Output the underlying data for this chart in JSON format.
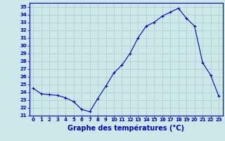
{
  "hours": [
    0,
    1,
    2,
    3,
    4,
    5,
    6,
    7,
    8,
    9,
    10,
    11,
    12,
    13,
    14,
    15,
    16,
    17,
    18,
    19,
    20,
    21,
    22,
    23
  ],
  "temperatures": [
    24.5,
    23.8,
    23.7,
    23.6,
    23.3,
    22.8,
    21.8,
    21.5,
    23.2,
    24.8,
    26.5,
    27.5,
    29.0,
    31.0,
    32.5,
    33.0,
    33.8,
    34.3,
    34.8,
    33.5,
    32.5,
    27.8,
    26.2,
    23.5
  ],
  "xlabel": "Graphe des températures (°C)",
  "ylim": [
    21,
    35.5
  ],
  "xlim": [
    -0.5,
    23.5
  ],
  "yticks": [
    21,
    22,
    23,
    24,
    25,
    26,
    27,
    28,
    29,
    30,
    31,
    32,
    33,
    34,
    35
  ],
  "xticks": [
    0,
    1,
    2,
    3,
    4,
    5,
    6,
    7,
    8,
    9,
    10,
    11,
    12,
    13,
    14,
    15,
    16,
    17,
    18,
    19,
    20,
    21,
    22,
    23
  ],
  "line_color": "#0000cc",
  "marker": "+",
  "bg_color": "#cce8e8",
  "grid_color": "#aacccc",
  "spine_color": "#0000cc",
  "tick_color": "#0000cc",
  "label_color": "#0000cc",
  "xlabel_fontsize": 7,
  "tick_fontsize": 5.0
}
